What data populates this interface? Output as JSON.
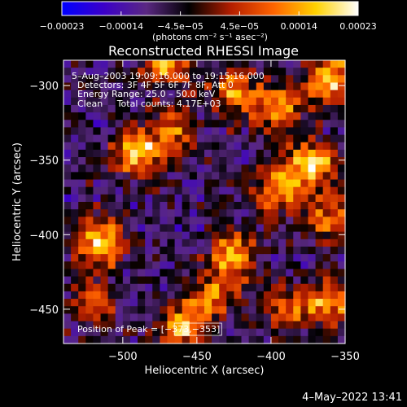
{
  "chart_data": {
    "type": "heatmap",
    "title": "Reconstructed RHESSI Image",
    "xlabel": "Heliocentric X (arcsec)",
    "ylabel": "Heliocentric Y (arcsec)",
    "xlim": [
      -540,
      -350
    ],
    "ylim": [
      -473,
      -283
    ],
    "x_ticks": [
      -500,
      -450,
      -400,
      -350
    ],
    "y_ticks": [
      -450,
      -400,
      -350,
      -300
    ],
    "x_tick_labels": [
      "−500",
      "−450",
      "−400",
      "−350"
    ],
    "y_tick_labels": [
      "−450",
      "−400",
      "−350",
      "−300"
    ],
    "colorbar": {
      "range": [
        -0.00023,
        0.00023
      ],
      "tick_labels": [
        "−0.00023",
        "−0.00014",
        "−4.5e−05",
        "4.5e−05",
        "0.00014",
        "0.00023"
      ],
      "unit_label": "(photons cm⁻² s⁻¹ asec⁻²)",
      "colormap_stops": [
        "#0000ff",
        "#3c00c8",
        "#5a2882",
        "#000000",
        "#b41e00",
        "#ff6400",
        "#ffd200",
        "#ffffff"
      ]
    },
    "annotations": [
      "5–Aug–2003 19:09:16.000 to 19:15:16.000",
      "Detectors: 3F 4F 5F 6F 7F 8F, Att 0",
      "Energy Range: 25.0 – 50.0 keV",
      "Clean     Total counts: 4.17E+03"
    ],
    "peak_label": "Position of Peak = [−373,−353]",
    "peak_position": [
      -373,
      -353
    ],
    "hot_regions": [
      {
        "x": -515,
        "y": -405,
        "intensity": 0.95
      },
      {
        "x": -490,
        "y": -345,
        "intensity": 0.9
      },
      {
        "x": -465,
        "y": -330,
        "intensity": 0.6
      },
      {
        "x": -470,
        "y": -285,
        "intensity": 0.75
      },
      {
        "x": -425,
        "y": -305,
        "intensity": 0.7
      },
      {
        "x": -395,
        "y": -315,
        "intensity": 0.8
      },
      {
        "x": -360,
        "y": -295,
        "intensity": 0.85
      },
      {
        "x": -373,
        "y": -353,
        "intensity": 1.0
      },
      {
        "x": -395,
        "y": -370,
        "intensity": 0.7
      },
      {
        "x": -360,
        "y": -390,
        "intensity": 0.6
      },
      {
        "x": -425,
        "y": -415,
        "intensity": 0.85
      },
      {
        "x": -440,
        "y": -440,
        "intensity": 0.6
      },
      {
        "x": -460,
        "y": -462,
        "intensity": 0.8
      },
      {
        "x": -360,
        "y": -445,
        "intensity": 0.75
      },
      {
        "x": -390,
        "y": -450,
        "intensity": 0.6
      },
      {
        "x": -520,
        "y": -445,
        "intensity": 0.55
      }
    ]
  },
  "footer_timestamp": "4–May–2022 13:41"
}
